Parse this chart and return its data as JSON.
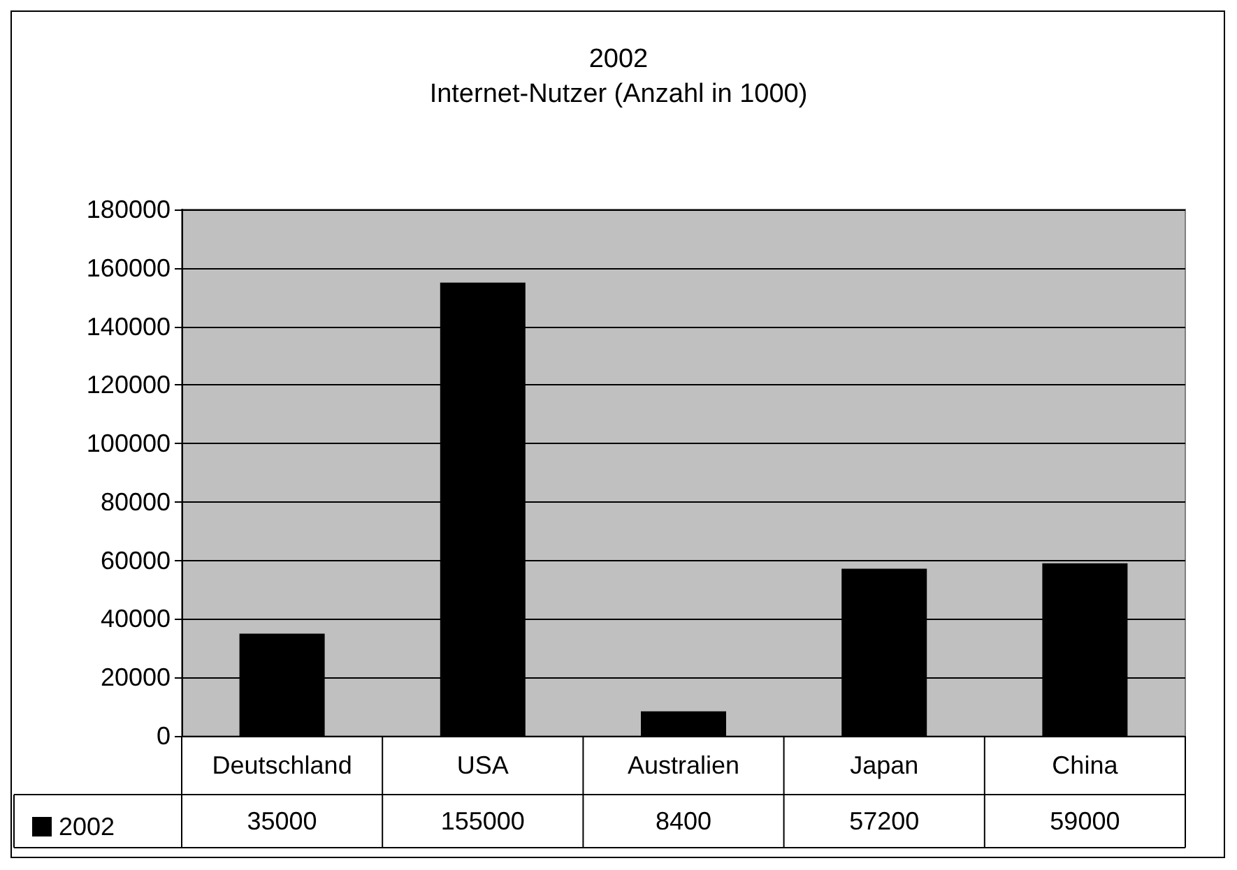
{
  "chart_data": {
    "type": "bar",
    "title": "2002",
    "subtitle": "Internet-Nutzer (Anzahl in 1000)",
    "categories": [
      "Deutschland",
      "USA",
      "Australien",
      "Japan",
      "China"
    ],
    "series": [
      {
        "name": "2002",
        "color": "#000000",
        "values": [
          35000,
          155000,
          8400,
          57200,
          59000
        ]
      }
    ],
    "ylim": [
      0,
      180000
    ],
    "yticks": [
      0,
      20000,
      40000,
      60000,
      80000,
      100000,
      120000,
      140000,
      160000,
      180000
    ],
    "grid": "y",
    "legend": "bottom left",
    "data_labels": true
  }
}
